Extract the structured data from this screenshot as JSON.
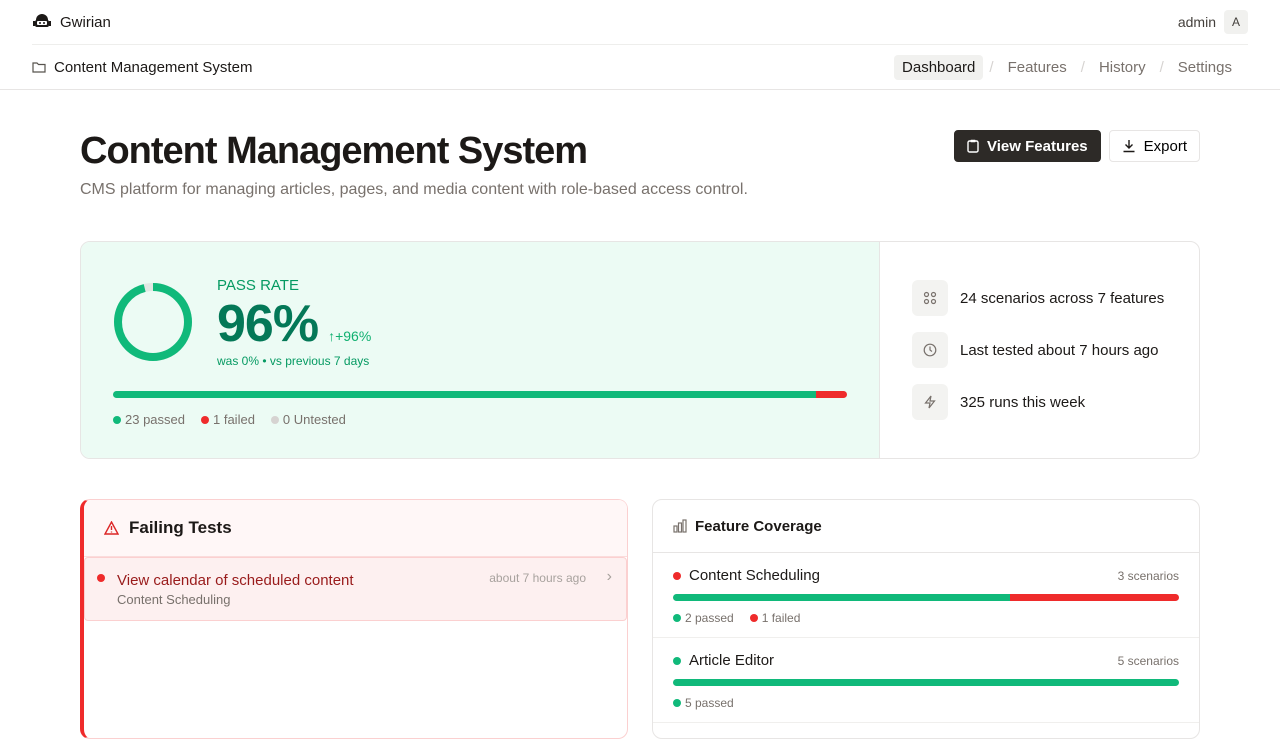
{
  "app": {
    "name": "Gwirian",
    "user": "admin",
    "avatar_initial": "A"
  },
  "breadcrumb": {
    "project": "Content Management System"
  },
  "nav": [
    {
      "label": "Dashboard",
      "active": true
    },
    {
      "label": "Features"
    },
    {
      "label": "History"
    },
    {
      "label": "Settings"
    }
  ],
  "page": {
    "title": "Content Management System",
    "description": "CMS platform for managing articles, pages, and media content with role-based access control.",
    "view_features_label": "View Features",
    "export_label": "Export"
  },
  "pass_rate": {
    "label": "PASS RATE",
    "value_text": "96%",
    "value": 96,
    "delta": "+96%",
    "comparison": "was 0% • vs previous 7 days",
    "passed": 23,
    "failed": 1,
    "untested": 0,
    "passed_label": "23 passed",
    "failed_label": "1 failed",
    "untested_label": "0 Untested"
  },
  "info": [
    {
      "icon": "grid-icon",
      "text": "24 scenarios across 7 features"
    },
    {
      "icon": "clock-icon",
      "text": "Last tested about 7 hours ago"
    },
    {
      "icon": "zap-icon",
      "text": "325 runs this week"
    }
  ],
  "failing": {
    "title": "Failing Tests",
    "items": [
      {
        "name": "View calendar of scheduled content",
        "feature": "Content Scheduling",
        "time": "about 7 hours ago"
      }
    ]
  },
  "coverage": {
    "title": "Feature Coverage",
    "features": [
      {
        "name": "Content Scheduling",
        "scenarios": "3 scenarios",
        "passed": 2,
        "failed": 1,
        "status": "failed",
        "passed_label": "2 passed",
        "failed_label": "1 failed"
      },
      {
        "name": "Article Editor",
        "scenarios": "5 scenarios",
        "passed": 5,
        "failed": 0,
        "status": "passed",
        "passed_label": "5 passed"
      }
    ]
  },
  "colors": {
    "pass": "#10b97a",
    "fail": "#ef2b2b",
    "untested": "#d6d3d1"
  }
}
